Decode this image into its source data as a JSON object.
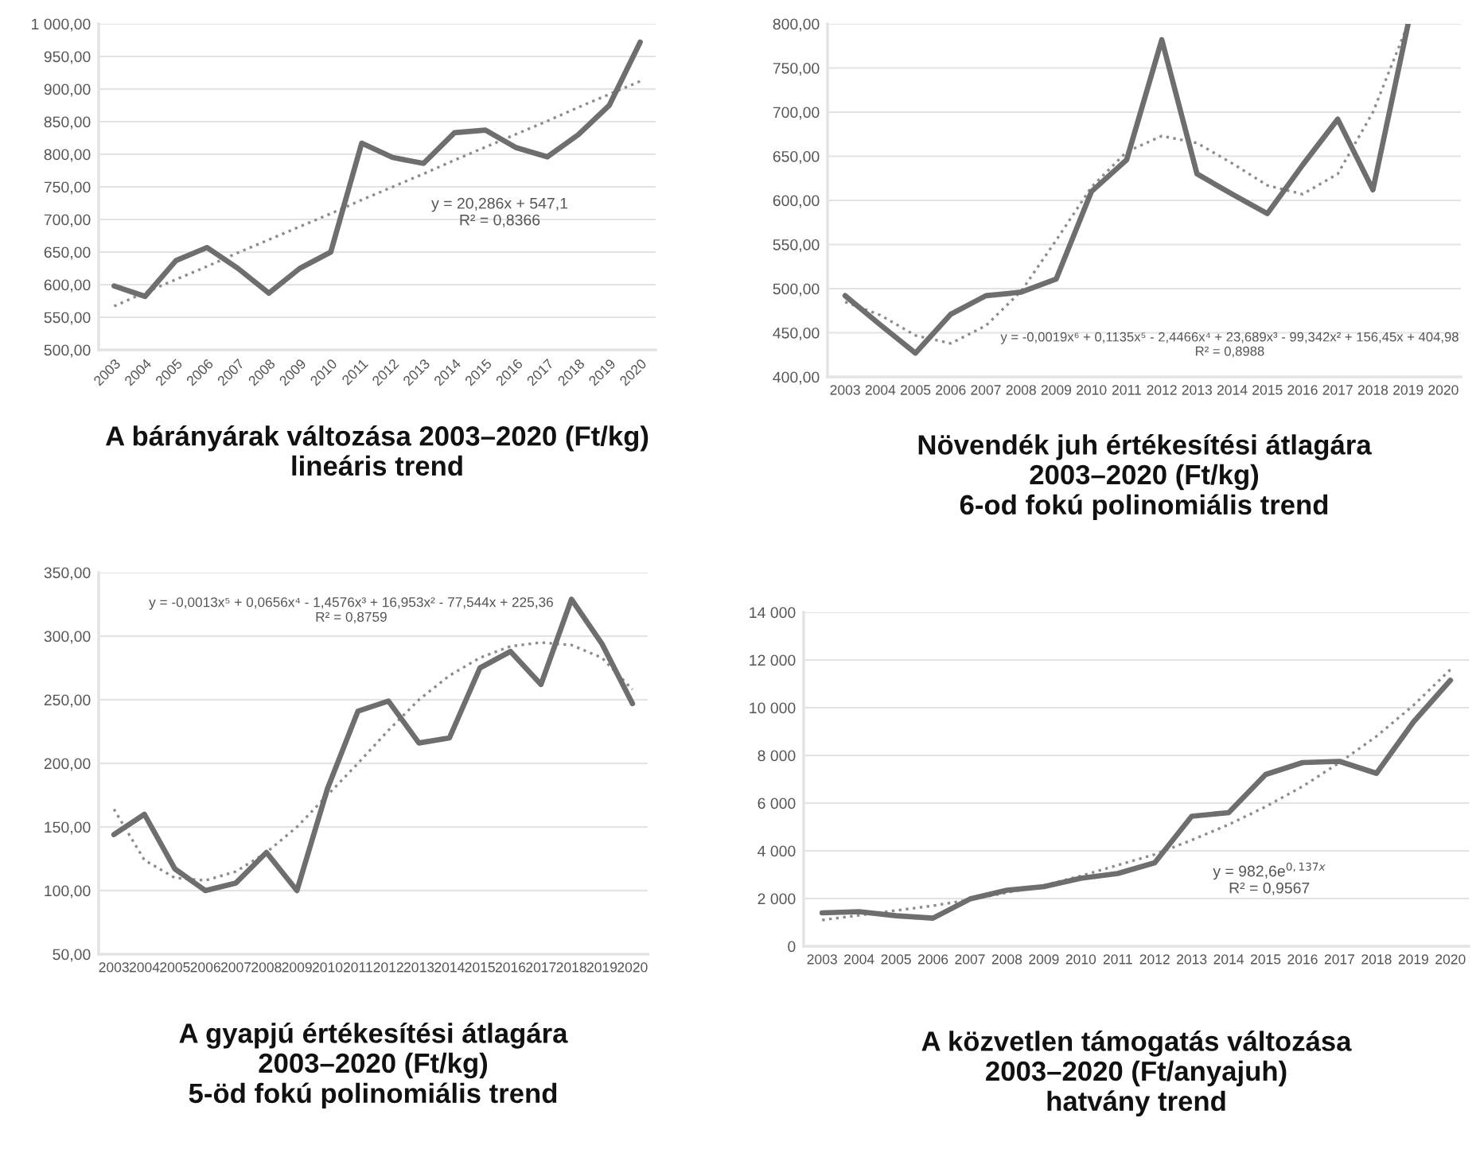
{
  "chart_data": [
    {
      "type": "line",
      "title": "A bárányárak változása 2003–2020 (Ft/kg)\nlineáris trend",
      "categories": [
        "2003",
        "2004",
        "2005",
        "2006",
        "2007",
        "2008",
        "2009",
        "2010",
        "2011",
        "2012",
        "2013",
        "2014",
        "2015",
        "2016",
        "2017",
        "2018",
        "2019",
        "2020"
      ],
      "ylim": [
        500,
        1000
      ],
      "yticks": [
        {
          "value": 500,
          "label": "500,00"
        },
        {
          "value": 550,
          "label": "550,00"
        },
        {
          "value": 600,
          "label": "600,00"
        },
        {
          "value": 650,
          "label": "650,00"
        },
        {
          "value": 700,
          "label": "700,00"
        },
        {
          "value": 750,
          "label": "750,00"
        },
        {
          "value": 800,
          "label": "800,00"
        },
        {
          "value": 850,
          "label": "850,00"
        },
        {
          "value": 900,
          "label": "900,00"
        },
        {
          "value": 950,
          "label": "950,00"
        },
        {
          "value": 1000,
          "label": "1 000,00"
        }
      ],
      "grid": "y",
      "annotations": [
        "y = 20,286x + 547,1\nR² = 0,8366"
      ],
      "series": [
        {
          "color": "#6e6e6e",
          "line_style": "solid",
          "values": [
            598,
            582,
            637,
            657,
            625,
            587,
            625,
            650,
            817,
            795,
            786,
            833,
            837,
            810,
            796,
            830,
            875,
            972
          ]
        },
        {
          "color": "#8c8c8c",
          "line_style": "dotted",
          "values": [
            567,
            588,
            608,
            628,
            649,
            669,
            689,
            709,
            730,
            750,
            770,
            791,
            811,
            831,
            851,
            872,
            892,
            912
          ]
        }
      ]
    },
    {
      "type": "line",
      "title": "Növendék juh értékesítési átlagára\n2003–2020 (Ft/kg)\n6-od fokú polinomiális trend",
      "categories": [
        "2003",
        "2004",
        "2005",
        "2006",
        "2007",
        "2008",
        "2009",
        "2010",
        "2011",
        "2012",
        "2013",
        "2014",
        "2015",
        "2016",
        "2017",
        "2018",
        "2019",
        "2020"
      ],
      "ylim": [
        400,
        800
      ],
      "yticks": [
        {
          "value": 400,
          "label": "400,00"
        },
        {
          "value": 450,
          "label": "450,00"
        },
        {
          "value": 500,
          "label": "500,00"
        },
        {
          "value": 550,
          "label": "550,00"
        },
        {
          "value": 600,
          "label": "600,00"
        },
        {
          "value": 650,
          "label": "650,00"
        },
        {
          "value": 700,
          "label": "700,00"
        },
        {
          "value": 750,
          "label": "750,00"
        },
        {
          "value": 800,
          "label": "800,00"
        }
      ],
      "grid": "y",
      "annotations": [
        "y = -0,0019x⁶ + 0,1135x⁵ - 2,4466x⁴ + 23,689x³ - 99,342x² + 156,45x + 404,98\nR² = 0,8988"
      ],
      "series": [
        {
          "color": "#6e6e6e",
          "line_style": "solid",
          "values": [
            492,
            459,
            427,
            471,
            492,
            496,
            511,
            610,
            646,
            782,
            630,
            607,
            585,
            640,
            692,
            612,
            800,
            null
          ]
        },
        {
          "color": "#8c8c8c",
          "line_style": "dotted",
          "values": [
            485,
            470,
            447,
            438,
            458,
            497,
            555,
            615,
            655,
            673,
            665,
            642,
            617,
            607,
            630,
            700,
            800,
            null
          ]
        }
      ]
    },
    {
      "type": "line",
      "title": "A gyapjú értékesítési átlagára\n2003–2020 (Ft/kg)\n5-öd fokú polinomiális trend",
      "categories": [
        "2003",
        "2004",
        "2005",
        "2006",
        "2007",
        "2008",
        "2009",
        "2010",
        "2011",
        "2012",
        "2013",
        "2014",
        "2015",
        "2016",
        "2017",
        "2018",
        "2019",
        "2020"
      ],
      "ylim": [
        50,
        350
      ],
      "yticks": [
        {
          "value": 50,
          "label": "50,00"
        },
        {
          "value": 100,
          "label": "100,00"
        },
        {
          "value": 150,
          "label": "150,00"
        },
        {
          "value": 200,
          "label": "200,00"
        },
        {
          "value": 250,
          "label": "250,00"
        },
        {
          "value": 300,
          "label": "300,00"
        },
        {
          "value": 350,
          "label": "350,00"
        }
      ],
      "grid": "y",
      "annotations": [
        "y = -0,0013x⁵ + 0,0656x⁴ - 1,4576x³ + 16,953x² - 77,544x + 225,36\nR² = 0,8759"
      ],
      "series": [
        {
          "color": "#6e6e6e",
          "line_style": "solid",
          "values": [
            144,
            160,
            117,
            100,
            106,
            130,
            100,
            180,
            241,
            249,
            216,
            220,
            275,
            288,
            262,
            329,
            294,
            247
          ]
        },
        {
          "color": "#8c8c8c",
          "line_style": "dotted",
          "values": [
            164,
            124,
            110,
            108,
            115,
            130,
            150,
            175,
            200,
            226,
            250,
            269,
            283,
            292,
            295,
            293,
            283,
            258
          ]
        }
      ]
    },
    {
      "type": "line",
      "title": "A közvetlen támogatás változása\n2003–2020 (Ft/anyajuh)\nhatvány trend",
      "categories": [
        "2003",
        "2004",
        "2005",
        "2006",
        "2007",
        "2008",
        "2009",
        "2010",
        "2011",
        "2012",
        "2013",
        "2014",
        "2015",
        "2016",
        "2017",
        "2018",
        "2019",
        "2020"
      ],
      "ylim": [
        0,
        14000
      ],
      "yticks": [
        0,
        {
          "value": 2000,
          "label": "2 000"
        },
        {
          "value": 4000,
          "label": "4 000"
        },
        {
          "value": 6000,
          "label": "6 000"
        },
        {
          "value": 8000,
          "label": "8 000"
        },
        {
          "value": 10000,
          "label": "10 000"
        },
        {
          "value": 12000,
          "label": "12 000"
        },
        {
          "value": 14000,
          "label": "14 000"
        }
      ],
      "grid": "y",
      "annotations": [
        "y = 982,6e$^{0,137x}$\nR² = 0,9567"
      ],
      "series": [
        {
          "color": "#6e6e6e",
          "line_style": "solid",
          "values": [
            1400,
            1450,
            1280,
            1180,
            1980,
            2350,
            2500,
            2850,
            3050,
            3500,
            5450,
            5600,
            7200,
            7700,
            7750,
            7250,
            9400,
            11150
          ]
        },
        {
          "color": "#8c8c8c",
          "line_style": "dotted",
          "values": [
            1100,
            1300,
            1500,
            1700,
            1950,
            2250,
            2550,
            2950,
            3400,
            3850,
            4450,
            5100,
            5850,
            6700,
            7700,
            8800,
            10100,
            11600
          ]
        }
      ]
    }
  ]
}
